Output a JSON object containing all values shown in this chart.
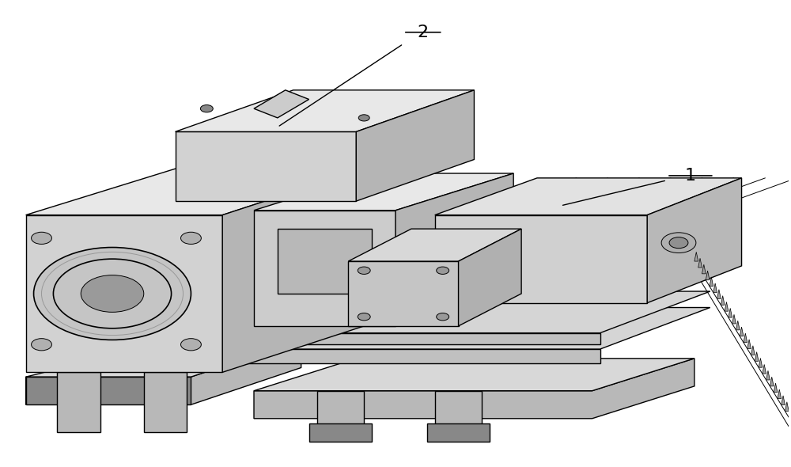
{
  "background_color": "#ffffff",
  "figure_width": 10.0,
  "figure_height": 5.9,
  "dpi": 100,
  "label_1": "1",
  "label_2": "2",
  "font_size": 16,
  "line_color": "#000000",
  "lw_main": 1.2,
  "lw_thin": 0.7,
  "colors": {
    "light": "#d8d8d8",
    "mid": "#b8b8b8",
    "dark": "#888888",
    "front_face": "#d2d2d2",
    "right_face": "#b5b5b5",
    "top_face": "#e8e8e8"
  }
}
